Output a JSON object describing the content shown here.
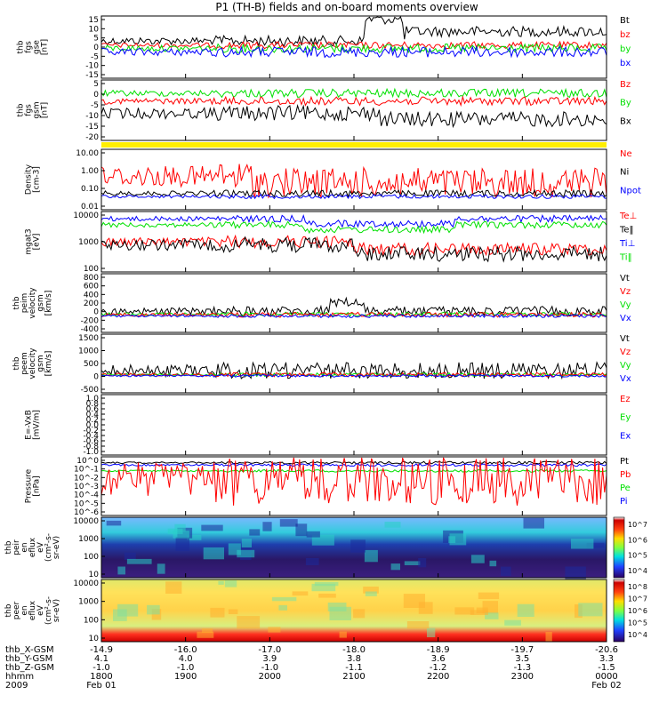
{
  "title": "P1 (TH-B) fields and on-board moments overview",
  "colors": {
    "black": "#000000",
    "red": "#ff0000",
    "green": "#00e000",
    "blue": "#0000ff",
    "yellow": "#ffee00"
  },
  "panels": [
    {
      "key": "fgs_gse",
      "ylabel_lines": [
        "thb",
        "fgs",
        "gse",
        "[nT]"
      ],
      "ticks": [
        "15",
        "10",
        "5",
        "0",
        "-5",
        "-10",
        "-15"
      ],
      "legend": [
        {
          "text": "Bt",
          "color": "black"
        },
        {
          "text": "bz",
          "color": "red"
        },
        {
          "text": "by",
          "color": "green"
        },
        {
          "text": "bx",
          "color": "blue"
        }
      ]
    },
    {
      "key": "fgs_gsm",
      "ylabel_lines": [
        "thb",
        "fgs",
        "gsm",
        "[nT]"
      ],
      "ticks": [
        "5",
        "0",
        "-5",
        "-10",
        "-15",
        "-20"
      ],
      "legend": [
        {
          "text": "Bz",
          "color": "red"
        },
        {
          "text": "By",
          "color": "green"
        },
        {
          "text": "Bx",
          "color": "black"
        }
      ]
    },
    {
      "key": "density",
      "ylabel_lines": [
        "Density",
        "[cm-3]"
      ],
      "ticks": [
        "10.00",
        "1.00",
        "0.10",
        "0.01"
      ],
      "legend": [
        {
          "text": "Ne",
          "color": "red"
        },
        {
          "text": "Ni",
          "color": "black"
        },
        {
          "text": "Npot",
          "color": "blue"
        }
      ]
    },
    {
      "key": "temperature",
      "ylabel_lines": [
        "mgat3",
        "[eV]"
      ],
      "ticks": [
        "10000",
        "1000",
        "100"
      ],
      "legend": [
        {
          "text": "Te⊥",
          "color": "red"
        },
        {
          "text": "Te‖",
          "color": "black"
        },
        {
          "text": "Ti⊥",
          "color": "blue"
        },
        {
          "text": "Ti‖",
          "color": "green"
        }
      ]
    },
    {
      "key": "peim_velocity",
      "ylabel_lines": [
        "thb",
        "peim",
        "velocity",
        "gsm",
        "[km/s]"
      ],
      "ticks": [
        "800",
        "600",
        "400",
        "200",
        "0",
        "-200",
        "-400"
      ],
      "legend": [
        {
          "text": "Vt",
          "color": "black"
        },
        {
          "text": "Vz",
          "color": "red"
        },
        {
          "text": "Vy",
          "color": "green"
        },
        {
          "text": "Vx",
          "color": "blue"
        }
      ]
    },
    {
      "key": "peem_velocity",
      "ylabel_lines": [
        "thb",
        "peem",
        "velocity",
        "gsm",
        "[km/s]"
      ],
      "ticks": [
        "1500",
        "1000",
        "500",
        "0",
        "-500"
      ],
      "legend": [
        {
          "text": "Vt",
          "color": "black"
        },
        {
          "text": "Vz",
          "color": "red"
        },
        {
          "text": "Vy",
          "color": "green"
        },
        {
          "text": "Vx",
          "color": "blue"
        }
      ]
    },
    {
      "key": "efield",
      "ylabel_lines": [
        "E=-VxB",
        "[mV/m]"
      ],
      "ticks": [
        "1.0",
        "0.8",
        "0.6",
        "0.4",
        "0.2",
        "0.0",
        "-0.2",
        "-0.4",
        "-0.6",
        "-0.8",
        "-1.0"
      ],
      "legend": [
        {
          "text": "Ez",
          "color": "red"
        },
        {
          "text": "Ey",
          "color": "green"
        },
        {
          "text": "Ex",
          "color": "blue"
        }
      ]
    },
    {
      "key": "pressure",
      "ylabel_lines": [
        "Pressure",
        "[nPa]"
      ],
      "ticks": [
        "10^0",
        "10^-1",
        "10^-2",
        "10^-3",
        "10^-4",
        "10^-5",
        "10^-6"
      ],
      "legend": [
        {
          "text": "Pt",
          "color": "black"
        },
        {
          "text": "Pb",
          "color": "red"
        },
        {
          "text": "Pe",
          "color": "green"
        },
        {
          "text": "Pi",
          "color": "blue"
        }
      ]
    },
    {
      "key": "peir_eflux",
      "ylabel_lines": [
        "thb",
        "peir",
        "en",
        "eflux",
        "eV",
        "(cm²-s-",
        "sr-eV)"
      ],
      "ticks": [
        "10000",
        "1000",
        "100",
        "10"
      ],
      "colorbar_ticks": [
        "10^7",
        "10^6",
        "10^5",
        "10^4"
      ]
    },
    {
      "key": "peer_eflux",
      "ylabel_lines": [
        "thb",
        "peer",
        "en",
        "eflux",
        "eV",
        "(cm²-s-",
        "sr-eV)"
      ],
      "ticks": [
        "10000",
        "1000",
        "100",
        "10"
      ],
      "colorbar_ticks": [
        "10^8",
        "10^7",
        "10^6",
        "10^5",
        "10^4"
      ]
    }
  ],
  "footer": {
    "row_labels": [
      "thb_X-GSM",
      "thb_Y-GSM",
      "thb_Z-GSM",
      "hhmm",
      "2009"
    ],
    "columns": [
      {
        "x": "-14.9",
        "y": "4.1",
        "z": "-1.0",
        "hhmm": "1800",
        "date": "Feb 01"
      },
      {
        "x": "-16.0",
        "y": "4.0",
        "z": "-1.0",
        "hhmm": "1900",
        "date": ""
      },
      {
        "x": "-17.0",
        "y": "3.9",
        "z": "-1.0",
        "hhmm": "2000",
        "date": ""
      },
      {
        "x": "-18.0",
        "y": "3.8",
        "z": "-1.1",
        "hhmm": "2100",
        "date": ""
      },
      {
        "x": "-18.9",
        "y": "3.6",
        "z": "-1.2",
        "hhmm": "2200",
        "date": ""
      },
      {
        "x": "-19.7",
        "y": "3.5",
        "z": "-1.3",
        "hhmm": "2300",
        "date": ""
      },
      {
        "x": "-20.6",
        "y": "3.3",
        "z": "-1.5",
        "hhmm": "0000",
        "date": "Feb 02"
      }
    ]
  },
  "chart_data": {
    "type": "line",
    "title": "P1 (TH-B) fields and on-board moments overview",
    "x": [
      "1800",
      "1900",
      "2000",
      "2100",
      "2200",
      "2300",
      "0000"
    ],
    "xlabel": "hhmm",
    "panels": [
      {
        "name": "thb fgs gse [nT]",
        "ylim": [
          -15,
          15
        ],
        "series": [
          {
            "name": "Bt",
            "values": [
              3,
              3.5,
              7,
              10,
              8,
              7.5,
              9
            ]
          },
          {
            "name": "bz",
            "values": [
              0.5,
              1,
              1,
              -1,
              1,
              0.5,
              1
            ]
          },
          {
            "name": "by",
            "values": [
              1,
              1,
              -2,
              -1,
              -2,
              -2,
              -1
            ]
          },
          {
            "name": "bx",
            "values": [
              -2,
              -1,
              -5,
              -9,
              -7,
              -7,
              -8
            ]
          }
        ]
      },
      {
        "name": "thb fgs gsm [nT]",
        "ylim": [
          -20,
          5
        ],
        "series": [
          {
            "name": "Bz",
            "values": [
              0,
              0,
              0,
              -1,
              0,
              0,
              0
            ]
          },
          {
            "name": "By",
            "values": [
              1.5,
              1,
              2,
              1,
              1,
              1,
              1
            ]
          },
          {
            "name": "Bx",
            "values": [
              -3,
              -4,
              -6,
              -10,
              -8,
              -8,
              -9
            ]
          }
        ]
      },
      {
        "name": "Density [cm-3]",
        "ylim": [
          0.01,
          10
        ],
        "log": true,
        "series": [
          {
            "name": "Ne",
            "values": [
              0.5,
              0.25,
              0.4,
              0.3,
              0.3,
              0.3,
              0.3
            ]
          },
          {
            "name": "Ni",
            "values": [
              0.2,
              0.2,
              0.15,
              0.12,
              0.12,
              0.11,
              0.12
            ]
          },
          {
            "name": "Npot",
            "values": [
              0.17,
              0.17,
              0.14,
              0.1,
              0.1,
              0.09,
              0.1
            ]
          }
        ]
      },
      {
        "name": "mgat3 [eV]",
        "ylim": [
          100,
          10000
        ],
        "log": true,
        "series": [
          {
            "name": "Te⊥",
            "values": [
              800,
              850,
              600,
              400,
              350,
              350,
              350
            ]
          },
          {
            "name": "Te‖",
            "values": [
              700,
              750,
              500,
              300,
              300,
              300,
              300
            ]
          },
          {
            "name": "Ti⊥",
            "values": [
              5000,
              5000,
              4000,
              3000,
              3000,
              3500,
              4000
            ]
          },
          {
            "name": "Ti‖",
            "values": [
              3000,
              3200,
              2500,
              2000,
              2000,
              2200,
              2400
            ]
          }
        ]
      },
      {
        "name": "thb peim velocity gsm [km/s]",
        "ylim": [
          -400,
          800
        ],
        "series": [
          {
            "name": "Vt",
            "values": [
              50,
              60,
              120,
              200,
              100,
              80,
              90
            ]
          },
          {
            "name": "Vz",
            "values": [
              0,
              10,
              0,
              20,
              0,
              10,
              0
            ]
          },
          {
            "name": "Vy",
            "values": [
              10,
              20,
              30,
              50,
              20,
              10,
              20
            ]
          },
          {
            "name": "Vx",
            "values": [
              0,
              -10,
              10,
              -10,
              -20,
              -10,
              -20
            ]
          }
        ]
      },
      {
        "name": "thb peem velocity gsm [km/s]",
        "ylim": [
          -500,
          1500
        ],
        "series": [
          {
            "name": "Vt",
            "values": [
              100,
              200,
              200,
              300,
              250,
              250,
              300
            ]
          },
          {
            "name": "Vz",
            "values": [
              0,
              20,
              0,
              50,
              30,
              20,
              30
            ]
          },
          {
            "name": "Vy",
            "values": [
              20,
              30,
              40,
              50,
              30,
              20,
              30
            ]
          },
          {
            "name": "Vx",
            "values": [
              0,
              -20,
              -20,
              -30,
              -30,
              -20,
              -30
            ]
          }
        ]
      },
      {
        "name": "E=-VxB [mV/m]",
        "ylim": [
          -1,
          1
        ],
        "series": [
          {
            "name": "Ez",
            "values": []
          },
          {
            "name": "Ey",
            "values": []
          },
          {
            "name": "Ex",
            "values": []
          }
        ]
      },
      {
        "name": "Pressure [nPa]",
        "ylim": [
          1e-06,
          1
        ],
        "log": true,
        "series": [
          {
            "name": "Pt",
            "values": [
              0.05,
              0.05,
              0.05,
              0.06,
              0.05,
              0.05,
              0.05
            ]
          },
          {
            "name": "Pb",
            "values": [
              0.003,
              0.001,
              0.002,
              0.003,
              0.002,
              0.002,
              0.002
            ]
          },
          {
            "name": "Pe",
            "values": [
              0.015,
              0.015,
              0.015,
              0.02,
              0.02,
              0.02,
              0.02
            ]
          },
          {
            "name": "Pi",
            "values": [
              0.05,
              0.05,
              0.05,
              0.05,
              0.04,
              0.04,
              0.04
            ]
          }
        ]
      }
    ]
  }
}
